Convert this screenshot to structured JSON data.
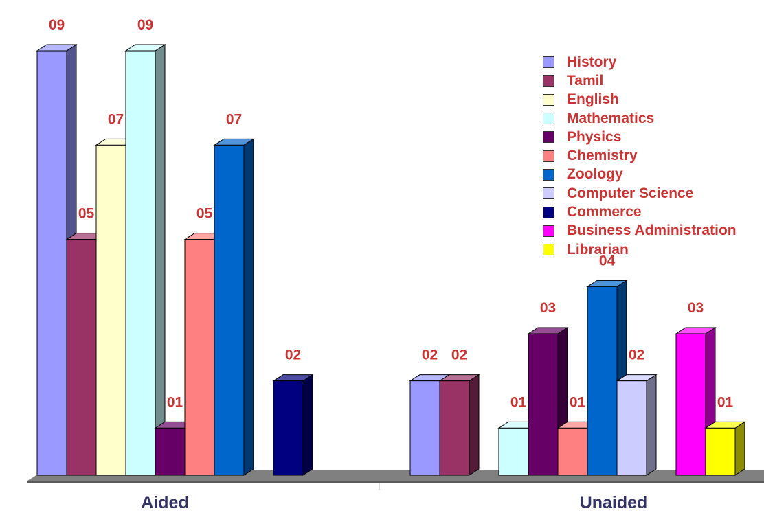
{
  "chart_data": {
    "type": "bar",
    "categories": [
      "Aided",
      "Unaided"
    ],
    "series": [
      {
        "name": "History",
        "color": "#9999FF",
        "values": [
          9,
          2
        ],
        "labels": [
          "09",
          "02"
        ]
      },
      {
        "name": "Tamil",
        "color": "#993366",
        "values": [
          5,
          2
        ],
        "labels": [
          "05",
          "02"
        ]
      },
      {
        "name": "English",
        "color": "#FFFFCC",
        "values": [
          7,
          0
        ],
        "labels": [
          "07",
          ""
        ]
      },
      {
        "name": "Mathematics",
        "color": "#CCFFFF",
        "values": [
          9,
          1
        ],
        "labels": [
          "09",
          "01"
        ]
      },
      {
        "name": "Physics",
        "color": "#660066",
        "values": [
          1,
          3
        ],
        "labels": [
          "01",
          "03"
        ]
      },
      {
        "name": "Chemistry",
        "color": "#FF8080",
        "values": [
          5,
          1
        ],
        "labels": [
          "05",
          "01"
        ]
      },
      {
        "name": "Zoology",
        "color": "#0066CC",
        "values": [
          7,
          4
        ],
        "labels": [
          "07",
          "04"
        ]
      },
      {
        "name": "Computer Science",
        "color": "#CCCCFF",
        "values": [
          0,
          2
        ],
        "labels": [
          "",
          "02"
        ]
      },
      {
        "name": "Commerce",
        "color": "#000080",
        "values": [
          2,
          0
        ],
        "labels": [
          "02",
          ""
        ]
      },
      {
        "name": "Business Administration",
        "color": "#FF00FF",
        "values": [
          0,
          3
        ],
        "labels": [
          "",
          "03"
        ]
      },
      {
        "name": "Librarian",
        "color": "#FFFF00",
        "values": [
          0,
          1
        ],
        "labels": [
          "",
          "01"
        ]
      }
    ],
    "ylim": [
      0,
      9
    ],
    "grid": false,
    "legend": "top-right",
    "label_color": "#CC3333",
    "category_label_color": "#333366",
    "floor_color": "#808080"
  }
}
